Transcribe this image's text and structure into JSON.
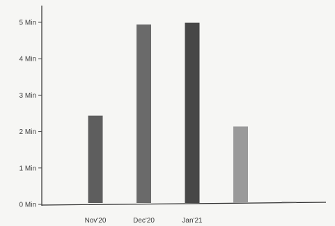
{
  "chart_data": {
    "type": "bar",
    "title": "",
    "xlabel": "",
    "ylabel": "",
    "categories": [
      "Nov'20",
      "Dec'20",
      "Jan'21",
      "",
      "",
      ""
    ],
    "values": [
      2.4,
      4.9,
      4.95,
      2.1,
      0.02,
      0
    ],
    "ylim": [
      0,
      5
    ],
    "y_ticks": [
      "0 Min",
      "1 Min",
      "2 Min",
      "3 Min",
      "4 Min",
      "5 Min"
    ],
    "y_tick_values": [
      0,
      1,
      2,
      3,
      4,
      5
    ],
    "bar_colors": [
      "#5e5e5e",
      "#6a6a6a",
      "#474747",
      "#9a9a9a",
      "#555555",
      "#555555"
    ],
    "grid": false,
    "legend": "none"
  }
}
